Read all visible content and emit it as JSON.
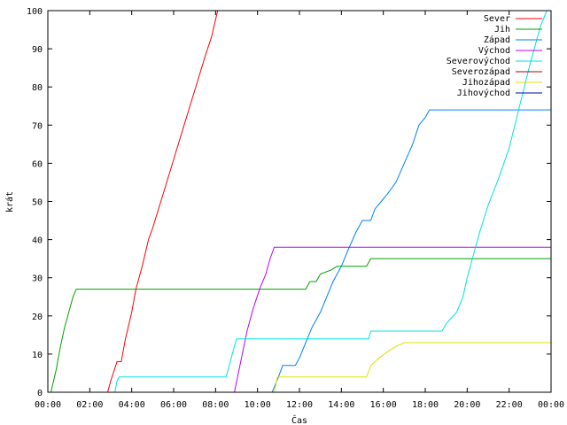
{
  "chart_data": {
    "type": "line",
    "title": "",
    "xlabel": "Čas",
    "ylabel": "krát",
    "x_ticks": [
      "00:00",
      "02:00",
      "04:00",
      "06:00",
      "08:00",
      "10:00",
      "12:00",
      "14:00",
      "16:00",
      "18:00",
      "20:00",
      "22:00",
      "00:00"
    ],
    "xlim": [
      0,
      24
    ],
    "ylim": [
      0,
      100
    ],
    "y_ticks": [
      0,
      10,
      20,
      30,
      40,
      50,
      60,
      70,
      80,
      90,
      100
    ],
    "grid": false,
    "legend_position": "top-right",
    "series": [
      {
        "name": "Sever",
        "color": "#ff0000",
        "points": [
          [
            0,
            0
          ],
          [
            2.85,
            0
          ],
          [
            3.0,
            3
          ],
          [
            3.3,
            8
          ],
          [
            3.5,
            8
          ],
          [
            3.7,
            14
          ],
          [
            4.0,
            21
          ],
          [
            4.2,
            27
          ],
          [
            4.5,
            33
          ],
          [
            4.8,
            40
          ],
          [
            5.0,
            43
          ],
          [
            5.5,
            52
          ],
          [
            6.0,
            61
          ],
          [
            6.5,
            70
          ],
          [
            7.0,
            79
          ],
          [
            7.5,
            88
          ],
          [
            7.8,
            93
          ],
          [
            8.1,
            100
          ]
        ]
      },
      {
        "name": "Jih",
        "color": "#00a000",
        "points": [
          [
            0,
            0
          ],
          [
            0.15,
            0
          ],
          [
            0.4,
            6
          ],
          [
            0.6,
            12
          ],
          [
            0.8,
            17
          ],
          [
            1.0,
            21
          ],
          [
            1.2,
            25
          ],
          [
            1.35,
            27
          ],
          [
            12.3,
            27
          ],
          [
            12.5,
            29
          ],
          [
            12.8,
            29
          ],
          [
            13.0,
            31
          ],
          [
            13.5,
            32
          ],
          [
            13.8,
            33
          ],
          [
            15.2,
            33
          ],
          [
            15.3,
            34
          ],
          [
            15.4,
            35
          ],
          [
            24,
            35
          ]
        ]
      },
      {
        "name": "Západ",
        "color": "#0080ff",
        "points": [
          [
            0,
            0
          ],
          [
            10.7,
            0
          ],
          [
            11.0,
            4
          ],
          [
            11.2,
            7
          ],
          [
            11.8,
            7
          ],
          [
            12.0,
            9
          ],
          [
            12.3,
            13
          ],
          [
            12.6,
            17
          ],
          [
            13.0,
            21
          ],
          [
            13.3,
            25
          ],
          [
            13.6,
            29
          ],
          [
            14.0,
            33
          ],
          [
            14.3,
            37
          ],
          [
            14.7,
            42
          ],
          [
            15.0,
            45
          ],
          [
            15.4,
            45
          ],
          [
            15.6,
            48
          ],
          [
            15.9,
            50
          ],
          [
            16.2,
            52
          ],
          [
            16.6,
            55
          ],
          [
            17.0,
            60
          ],
          [
            17.4,
            65
          ],
          [
            17.7,
            70
          ],
          [
            18.0,
            72
          ],
          [
            18.2,
            74
          ],
          [
            24,
            74
          ]
        ]
      },
      {
        "name": "Východ",
        "color": "#c000ff",
        "points": [
          [
            0,
            0
          ],
          [
            8.9,
            0
          ],
          [
            9.2,
            8
          ],
          [
            9.5,
            16
          ],
          [
            9.8,
            22
          ],
          [
            10.1,
            27
          ],
          [
            10.4,
            31
          ],
          [
            10.6,
            35
          ],
          [
            10.8,
            38
          ],
          [
            24,
            38
          ]
        ]
      },
      {
        "name": "Severovýchod",
        "color": "#00e0e0",
        "points": [
          [
            0,
            0
          ],
          [
            3.2,
            0
          ],
          [
            3.3,
            3
          ],
          [
            3.4,
            4
          ],
          [
            8.5,
            4
          ],
          [
            8.7,
            8
          ],
          [
            8.9,
            12
          ],
          [
            9.0,
            14
          ],
          [
            15.3,
            14
          ],
          [
            15.4,
            16
          ],
          [
            18.8,
            16
          ],
          [
            19.0,
            18
          ],
          [
            19.5,
            21
          ],
          [
            19.8,
            25
          ],
          [
            20.0,
            30
          ],
          [
            20.3,
            36
          ],
          [
            20.6,
            42
          ],
          [
            21.0,
            49
          ],
          [
            21.5,
            56
          ],
          [
            22.0,
            64
          ],
          [
            22.5,
            75
          ],
          [
            23.0,
            86
          ],
          [
            23.5,
            96
          ],
          [
            23.8,
            100
          ]
        ]
      },
      {
        "name": "Severozápad",
        "color": "#b00000",
        "points": []
      },
      {
        "name": "Jihozápad",
        "color": "#e0e000",
        "points": [
          [
            0,
            0
          ],
          [
            10.8,
            0
          ],
          [
            10.95,
            4
          ],
          [
            15.2,
            4
          ],
          [
            15.4,
            7
          ],
          [
            15.8,
            9
          ],
          [
            16.3,
            11
          ],
          [
            16.6,
            12
          ],
          [
            17.0,
            13
          ],
          [
            24,
            13
          ]
        ]
      },
      {
        "name": "Jihovýchod",
        "color": "#0000a0",
        "points": []
      }
    ]
  }
}
